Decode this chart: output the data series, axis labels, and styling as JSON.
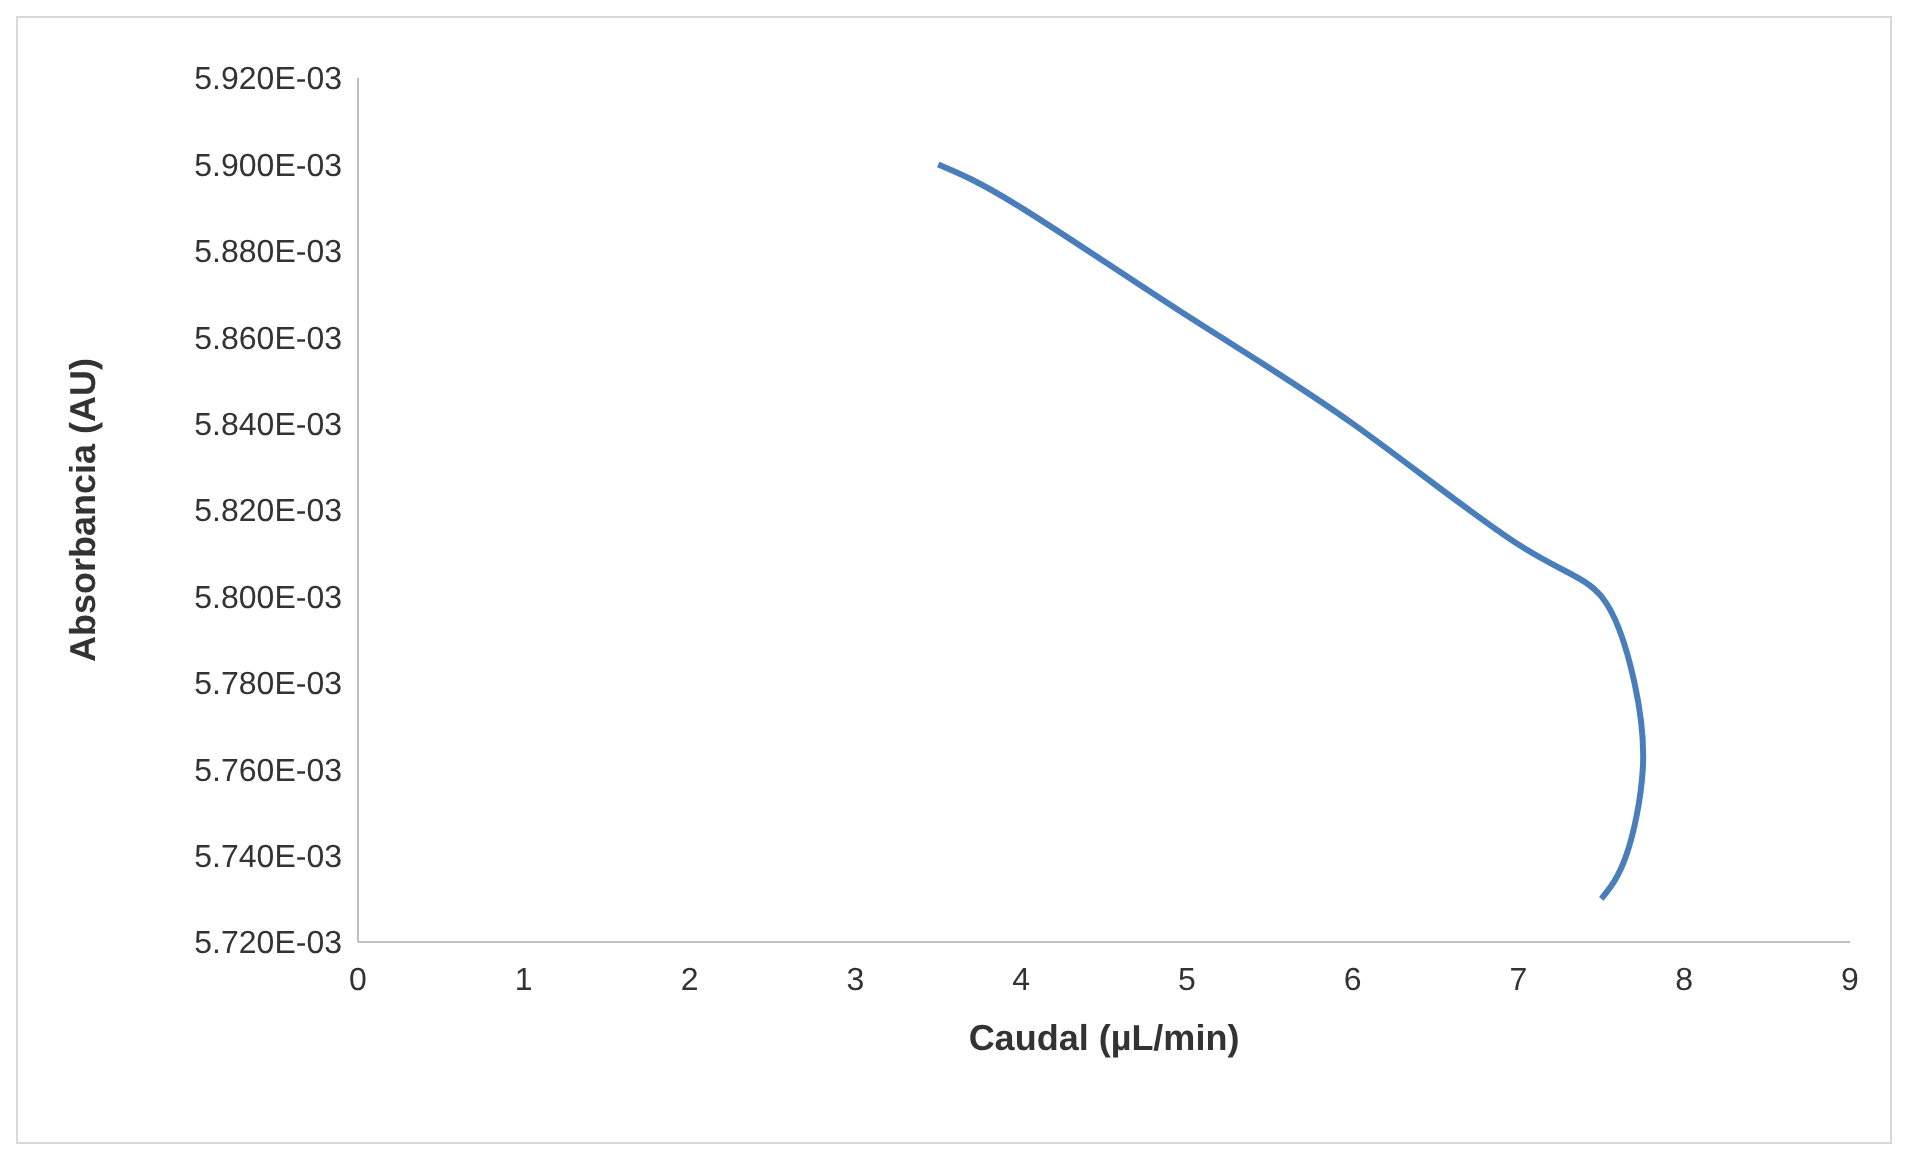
{
  "chart_data": {
    "type": "line",
    "xlabel": "Caudal (µL/min)",
    "ylabel": "Absorbancia (AU)",
    "xlim": [
      0,
      9
    ],
    "xticks": [
      0,
      1,
      2,
      3,
      4,
      5,
      6,
      7,
      8,
      9
    ],
    "ylim": [
      0.00572,
      0.00592
    ],
    "yticks": [
      {
        "value": 0.00572,
        "label": "5.720E-03"
      },
      {
        "value": 0.00574,
        "label": "5.740E-03"
      },
      {
        "value": 0.00576,
        "label": "5.760E-03"
      },
      {
        "value": 0.00578,
        "label": "5.780E-03"
      },
      {
        "value": 0.0058,
        "label": "5.800E-03"
      },
      {
        "value": 0.00582,
        "label": "5.820E-03"
      },
      {
        "value": 0.00584,
        "label": "5.840E-03"
      },
      {
        "value": 0.00586,
        "label": "5.860E-03"
      },
      {
        "value": 0.00588,
        "label": "5.880E-03"
      },
      {
        "value": 0.0059,
        "label": "5.900E-03"
      },
      {
        "value": 0.00592,
        "label": "5.920E-03"
      }
    ],
    "grid": false,
    "legend": false,
    "marker": "none",
    "line_style": "solid",
    "series": [
      {
        "color": "#4a7ebb",
        "x": [
          3.5,
          4,
          5,
          6,
          7,
          7.5,
          7.7,
          7.75,
          7.65,
          7.5
        ],
        "values": [
          0.0059,
          0.00589,
          0.005865,
          0.00584,
          0.005812,
          0.0058,
          0.00578,
          0.00576,
          0.00574,
          0.00573
        ]
      }
    ]
  }
}
